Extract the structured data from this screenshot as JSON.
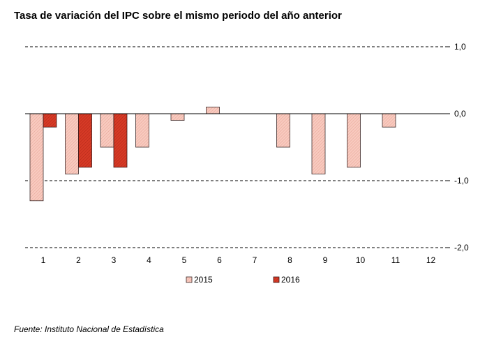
{
  "title": "Tasa de variación del IPC sobre el mismo periodo del año anterior",
  "source": "Fuente: Instituto Nacional de Estadística",
  "colors": {
    "s2015_fill": "#f8cabf",
    "s2015_hatch": "#e6a496",
    "s2015_stroke": "#3a2a2a",
    "s2016_fill": "#d63a26",
    "s2016_hatch": "#b02818",
    "s2016_stroke": "#3a1a1a",
    "grid": "#000000"
  },
  "chart_data": {
    "type": "bar",
    "categories": [
      "1",
      "2",
      "3",
      "4",
      "5",
      "6",
      "7",
      "8",
      "9",
      "10",
      "11",
      "12"
    ],
    "series": [
      {
        "name": "2015",
        "values": [
          -1.3,
          -0.9,
          -0.5,
          -0.5,
          -0.1,
          0.1,
          null,
          -0.5,
          -0.9,
          -0.8,
          -0.2,
          null
        ]
      },
      {
        "name": "2016",
        "values": [
          -0.2,
          -0.8,
          -0.8,
          null,
          null,
          null,
          null,
          null,
          null,
          null,
          null,
          null
        ]
      }
    ],
    "ylim": [
      -2.0,
      1.0
    ],
    "yticks": [
      1.0,
      0.0,
      -1.0,
      -2.0
    ],
    "ytick_labels": [
      "1,0",
      "0,0",
      "-1,0",
      "-2,0"
    ],
    "y_axis_side": "right",
    "grid": "dashed horizontal",
    "legend": "bottom"
  }
}
